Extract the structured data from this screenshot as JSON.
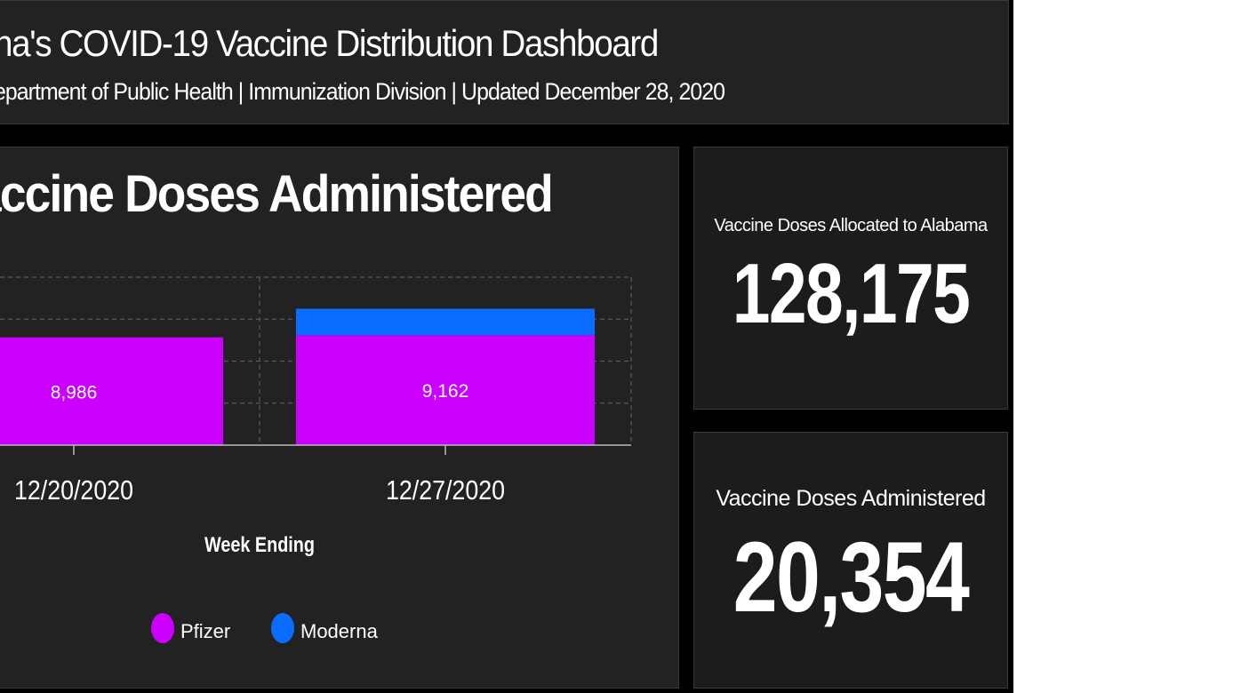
{
  "header": {
    "title": "na's COVID-19 Vaccine Distribution Dashboard",
    "subtitle": "epartment of Public Health | Immunization Division | Updated December 28, 2020"
  },
  "doses_chart": {
    "title": "accine Doses Administered"
  },
  "colors": {
    "background": "#000000",
    "panel": "#222222",
    "pfizer": "#cc00ff",
    "moderna": "#0a6dff",
    "text": "#ffffff"
  },
  "chart_data": {
    "type": "bar",
    "stacked": true,
    "title": "accine Doses Administered",
    "xlabel": "Week Ending",
    "ylabel": "",
    "categories": [
      "12/20/2020",
      "12/27/2020"
    ],
    "series": [
      {
        "name": "Pfizer",
        "color": "#cc00ff",
        "values": [
          8986,
          9162
        ],
        "labels": [
          "8,986",
          "9,162"
        ]
      },
      {
        "name": "Moderna",
        "color": "#0a6dff",
        "values": [
          0,
          2206
        ],
        "labels": [
          "",
          ""
        ]
      }
    ],
    "ylim": [
      0,
      14000
    ],
    "grid": true,
    "legend": "bottom"
  },
  "stats": {
    "allocated": {
      "label": "Vaccine Doses Allocated to Alabama",
      "value": "128,175"
    },
    "administered": {
      "label": "Vaccine Doses Administered",
      "value": "20,354"
    }
  }
}
